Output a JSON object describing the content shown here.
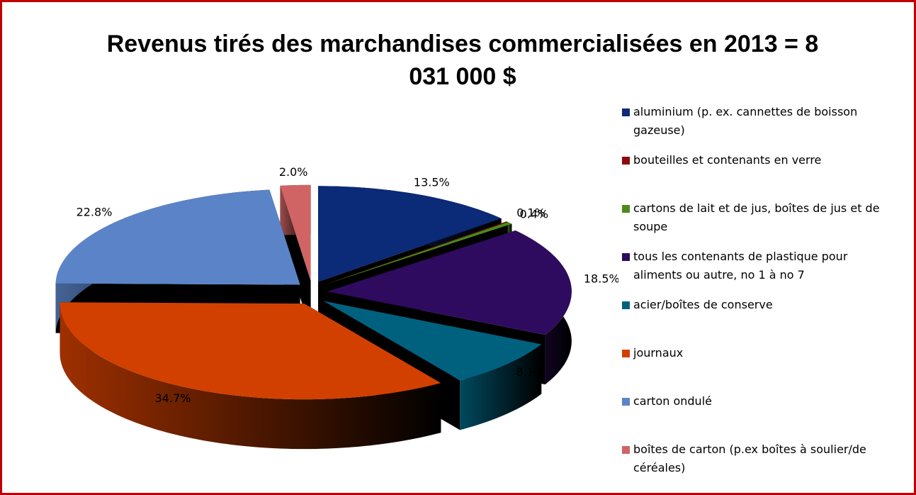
{
  "chart_data": {
    "type": "pie",
    "title": "Revenus tirés des marchandises commercialisées en 2013 = 8 031 000 $",
    "categories": [
      "aluminium (p. ex. cannettes de boisson gazeuse)",
      "bouteilles et contenants en verre",
      "cartons de lait et de jus, boîtes de jus et de soupe",
      "tous les contenants de plastique pour aliments ou autre, no 1 à no 7",
      "acier/boîtes de conserve",
      "journaux",
      "carton ondulé",
      "boîtes de carton (p.ex boîtes à soulier/de céréales)"
    ],
    "values": [
      13.5,
      0.1,
      0.4,
      18.5,
      8.1,
      34.7,
      22.8,
      2.0
    ],
    "value_labels": [
      "13.5%",
      "0.1%",
      "0.4%",
      "18.5%",
      "8.1%",
      "34.7%",
      "22.8%",
      "2.0%"
    ],
    "colors": [
      "#0b2a78",
      "#8b0a0a",
      "#4c8a1c",
      "#2e0b5e",
      "#00617f",
      "#d24000",
      "#5b84c8",
      "#d06464"
    ],
    "legend": "right"
  }
}
